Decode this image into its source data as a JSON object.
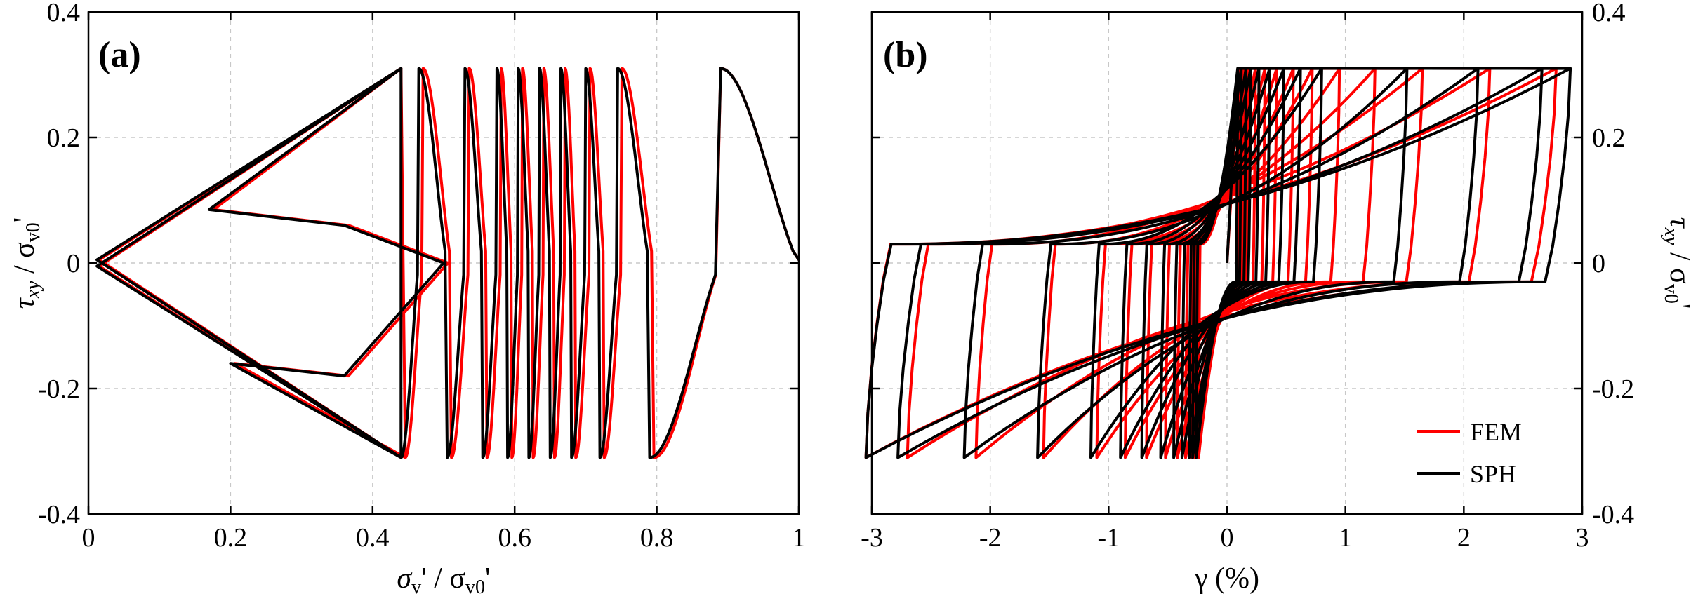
{
  "colors": {
    "fem": "#ff0000",
    "sph": "#000000"
  },
  "chart_data": [
    {
      "id": "a",
      "type": "line",
      "panel_label": "(a)",
      "xlabel": {
        "main": "σ",
        "sub1": "v",
        "mid": "' / σ",
        "sub2": "v0",
        "end": "'"
      },
      "ylabel": {
        "main": "τ",
        "sub1": "xy",
        "mid": " / σ",
        "sub2": "v0",
        "end": "'"
      },
      "xlim": [
        0,
        1
      ],
      "ylim": [
        -0.4,
        0.4
      ],
      "xticks": [
        0,
        0.2,
        0.4,
        0.6,
        0.8,
        1
      ],
      "xtick_labels": [
        "0",
        "0.2",
        "0.4",
        "0.6",
        "0.8",
        "1"
      ],
      "yticks": [
        -0.4,
        -0.2,
        0,
        0.2,
        0.4
      ],
      "ytick_labels": [
        "-0.4",
        "-0.2",
        "0",
        "0.2",
        "0.4"
      ],
      "grid": true,
      "stress_peak": 0.31,
      "effective_stress_at_peaks": [
        0.89,
        0.79,
        0.745,
        0.72,
        0.7,
        0.68,
        0.665,
        0.65,
        0.635,
        0.62,
        0.605,
        0.59,
        0.575,
        0.555,
        0.53,
        0.505,
        0.465,
        0.44
      ],
      "series": [
        {
          "name": "FEM",
          "color_key": "fem",
          "min_effective_stress": 0.015
        },
        {
          "name": "SPH",
          "color_key": "sph",
          "min_effective_stress": 0.012
        }
      ]
    },
    {
      "id": "b",
      "type": "line",
      "panel_label": "(b)",
      "xlabel": {
        "main": "γ (%)"
      },
      "ylabel": {
        "main": "τ",
        "sub1": "xy",
        "mid": " / σ",
        "sub2": "v0",
        "end": "'"
      },
      "xlim": [
        -3,
        3
      ],
      "ylim": [
        -0.4,
        0.4
      ],
      "xticks": [
        -3,
        -2,
        -1,
        0,
        1,
        2,
        3
      ],
      "xtick_labels": [
        "-3",
        "-2",
        "-1",
        "0",
        "1",
        "2",
        "3"
      ],
      "yticks": [
        -0.4,
        -0.2,
        0,
        0.2,
        0.4
      ],
      "ytick_labels": [
        "-0.4",
        "-0.2",
        "0",
        "0.2",
        "0.4"
      ],
      "grid": true,
      "legend_position": "bottom-right",
      "stress_peak": 0.31,
      "series": [
        {
          "name": "FEM",
          "color_key": "fem",
          "strain_amplitudes": [
            [
              0.1,
              -0.24
            ],
            [
              0.14,
              -0.27
            ],
            [
              0.18,
              -0.3
            ],
            [
              0.24,
              -0.35
            ],
            [
              0.32,
              -0.42
            ],
            [
              0.42,
              -0.52
            ],
            [
              0.56,
              -0.68
            ],
            [
              0.72,
              -0.86
            ],
            [
              0.95,
              -1.1
            ],
            [
              1.25,
              -1.55
            ],
            [
              1.65,
              -2.12
            ],
            [
              2.22,
              -2.7
            ],
            [
              2.78,
              -3.05
            ]
          ]
        },
        {
          "name": "SPH",
          "color_key": "sph",
          "strain_amplitudes": [
            [
              0.09,
              -0.26
            ],
            [
              0.12,
              -0.29
            ],
            [
              0.16,
              -0.32
            ],
            [
              0.2,
              -0.38
            ],
            [
              0.27,
              -0.45
            ],
            [
              0.36,
              -0.56
            ],
            [
              0.48,
              -0.72
            ],
            [
              0.62,
              -0.9
            ],
            [
              0.8,
              -1.15
            ],
            [
              1.52,
              -1.6
            ],
            [
              2.12,
              -2.22
            ],
            [
              2.66,
              -2.78
            ],
            [
              2.9,
              -3.05
            ]
          ]
        }
      ]
    }
  ]
}
